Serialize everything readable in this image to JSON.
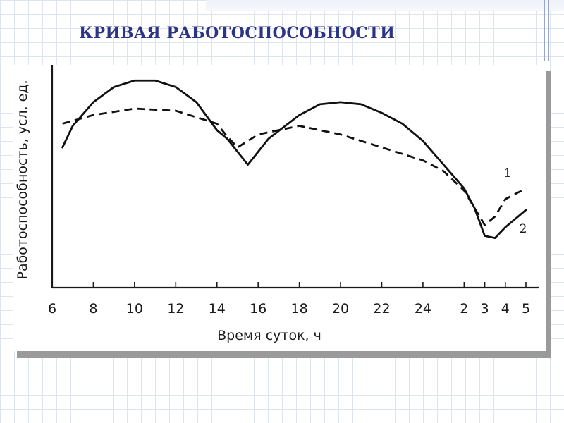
{
  "slide": {
    "title": "КРИВАЯ РАБОТОСПОСОБНОСТИ"
  },
  "chart_data": {
    "type": "line",
    "title": "",
    "xlabel": "Время суток, ч",
    "ylabel": "Работоспособность, усл. ед.",
    "x_tick_labels": [
      "6",
      "8",
      "10",
      "12",
      "14",
      "16",
      "18",
      "20",
      "22",
      "24",
      "2",
      "3",
      "4",
      "5"
    ],
    "x_ticks_hours_elapsed_from_6": [
      0,
      2,
      4,
      6,
      8,
      10,
      12,
      14,
      16,
      18,
      20,
      21,
      22,
      23
    ],
    "x_range_hours_elapsed_from_6": [
      0,
      23
    ],
    "y_range": [
      0,
      100
    ],
    "y_tick_labels": [],
    "grid": false,
    "legend": "curve labels at right end",
    "series": [
      {
        "name": "1",
        "style": "dashed",
        "x": [
          0.5,
          2,
          4,
          6,
          8,
          8.5,
          9,
          10,
          12,
          14,
          16,
          18,
          19,
          20,
          21,
          21.5,
          22,
          23
        ],
        "y": [
          76,
          80,
          83,
          82,
          76,
          70,
          65,
          71,
          75,
          71,
          65,
          59,
          54,
          45,
          29,
          33,
          41,
          46
        ]
      },
      {
        "name": "2",
        "style": "solid",
        "x": [
          0.5,
          1,
          2,
          3,
          4,
          5,
          6,
          7,
          8,
          8.5,
          9.5,
          10.5,
          12,
          13,
          14,
          15,
          16,
          17,
          18,
          19,
          20,
          20.5,
          21,
          21.5,
          22,
          23
        ],
        "y": [
          65,
          75,
          86,
          93,
          96,
          96,
          93,
          86,
          73,
          69,
          57,
          69,
          80,
          85,
          86,
          85,
          81,
          76,
          68,
          57,
          46,
          37,
          24,
          23,
          28,
          36
        ]
      }
    ]
  }
}
